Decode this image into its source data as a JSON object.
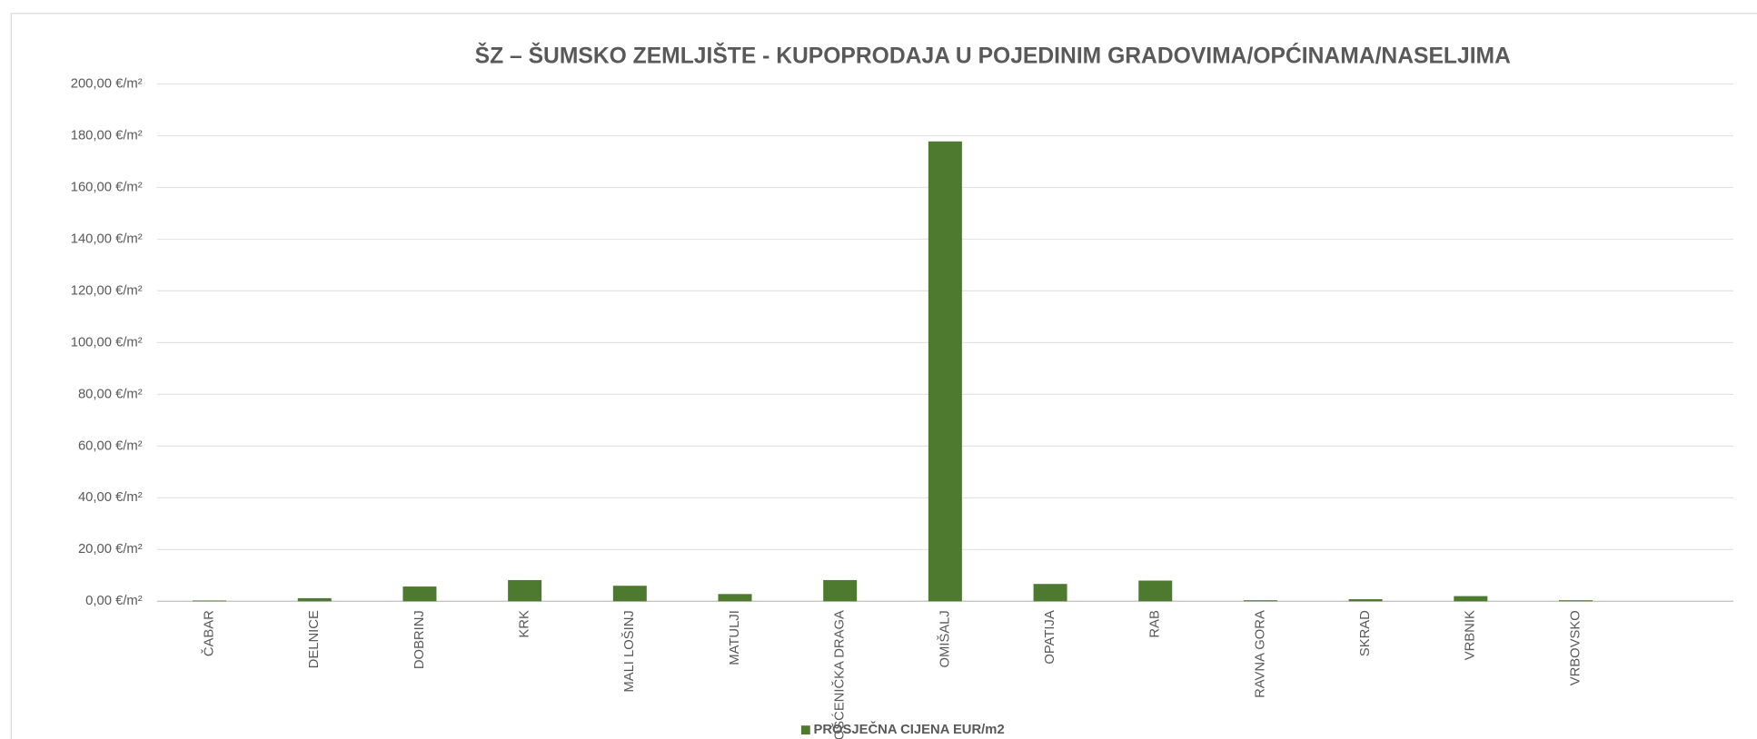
{
  "chart_data": {
    "type": "bar",
    "title": "ŠZ – ŠUMSKO ZEMLJIŠTE - KUPOPRODAJA  U POJEDINIM GRADOVIMA/OPĆINAMA/NASELJIMA",
    "categories": [
      "ČABAR",
      "DELNICE",
      "DOBRINJ",
      "KRK",
      "MALI LOŠINJ",
      "MATULJI",
      "MOŠĆENIČKA DRAGA",
      "OMIŠALJ",
      "OPATIJA",
      "RAB",
      "RAVNA GORA",
      "SKRAD",
      "VRBNIK",
      "VRBOVSKO",
      null
    ],
    "series": [
      {
        "name": "PROSJEČNA CIJENA EUR/m2",
        "color": "#4e7a2f",
        "values": [
          0.3,
          1.2,
          5.7,
          8.2,
          6.0,
          2.8,
          8.2,
          177.8,
          6.7,
          8.0,
          0.4,
          0.8,
          2.0,
          0.4,
          null
        ]
      }
    ],
    "ylim": [
      0,
      200
    ],
    "yticks": [
      {
        "value": 0,
        "label": "0,00 €/m²"
      },
      {
        "value": 20,
        "label": "20,00 €/m²"
      },
      {
        "value": 40,
        "label": "40,00 €/m²"
      },
      {
        "value": 60,
        "label": "60,00 €/m²"
      },
      {
        "value": 80,
        "label": "80,00 €/m²"
      },
      {
        "value": 100,
        "label": "100,00 €/m²"
      },
      {
        "value": 120,
        "label": "120,00 €/m²"
      },
      {
        "value": 140,
        "label": "140,00 €/m²"
      },
      {
        "value": 160,
        "label": "160,00 €/m²"
      },
      {
        "value": 180,
        "label": "180,00 €/m²"
      },
      {
        "value": 200,
        "label": "200,00 €/m²"
      }
    ],
    "grid": true,
    "legend": "bottom"
  }
}
